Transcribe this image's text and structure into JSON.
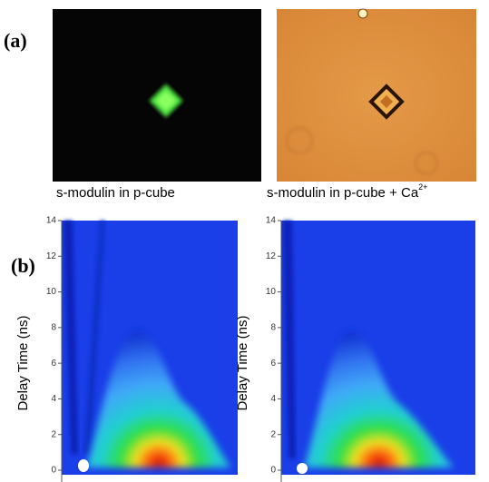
{
  "labels": {
    "a": "(a)",
    "b": "(b)"
  },
  "images": [
    {
      "caption": "s-modulin in p-cube"
    },
    {
      "caption": "s-modulin in p-cube + Ca",
      "superscript": "2+"
    }
  ],
  "plots": [
    {
      "ylabel": "Delay Time (ns)",
      "ylim": [
        0,
        14
      ],
      "yticks": [
        0,
        2,
        4,
        6,
        8,
        10,
        12,
        14
      ]
    },
    {
      "ylabel": "Delay Time (ns)",
      "ylim": [
        0,
        14
      ],
      "yticks": [
        0,
        2,
        4,
        6,
        8,
        10,
        12,
        14
      ]
    }
  ]
}
